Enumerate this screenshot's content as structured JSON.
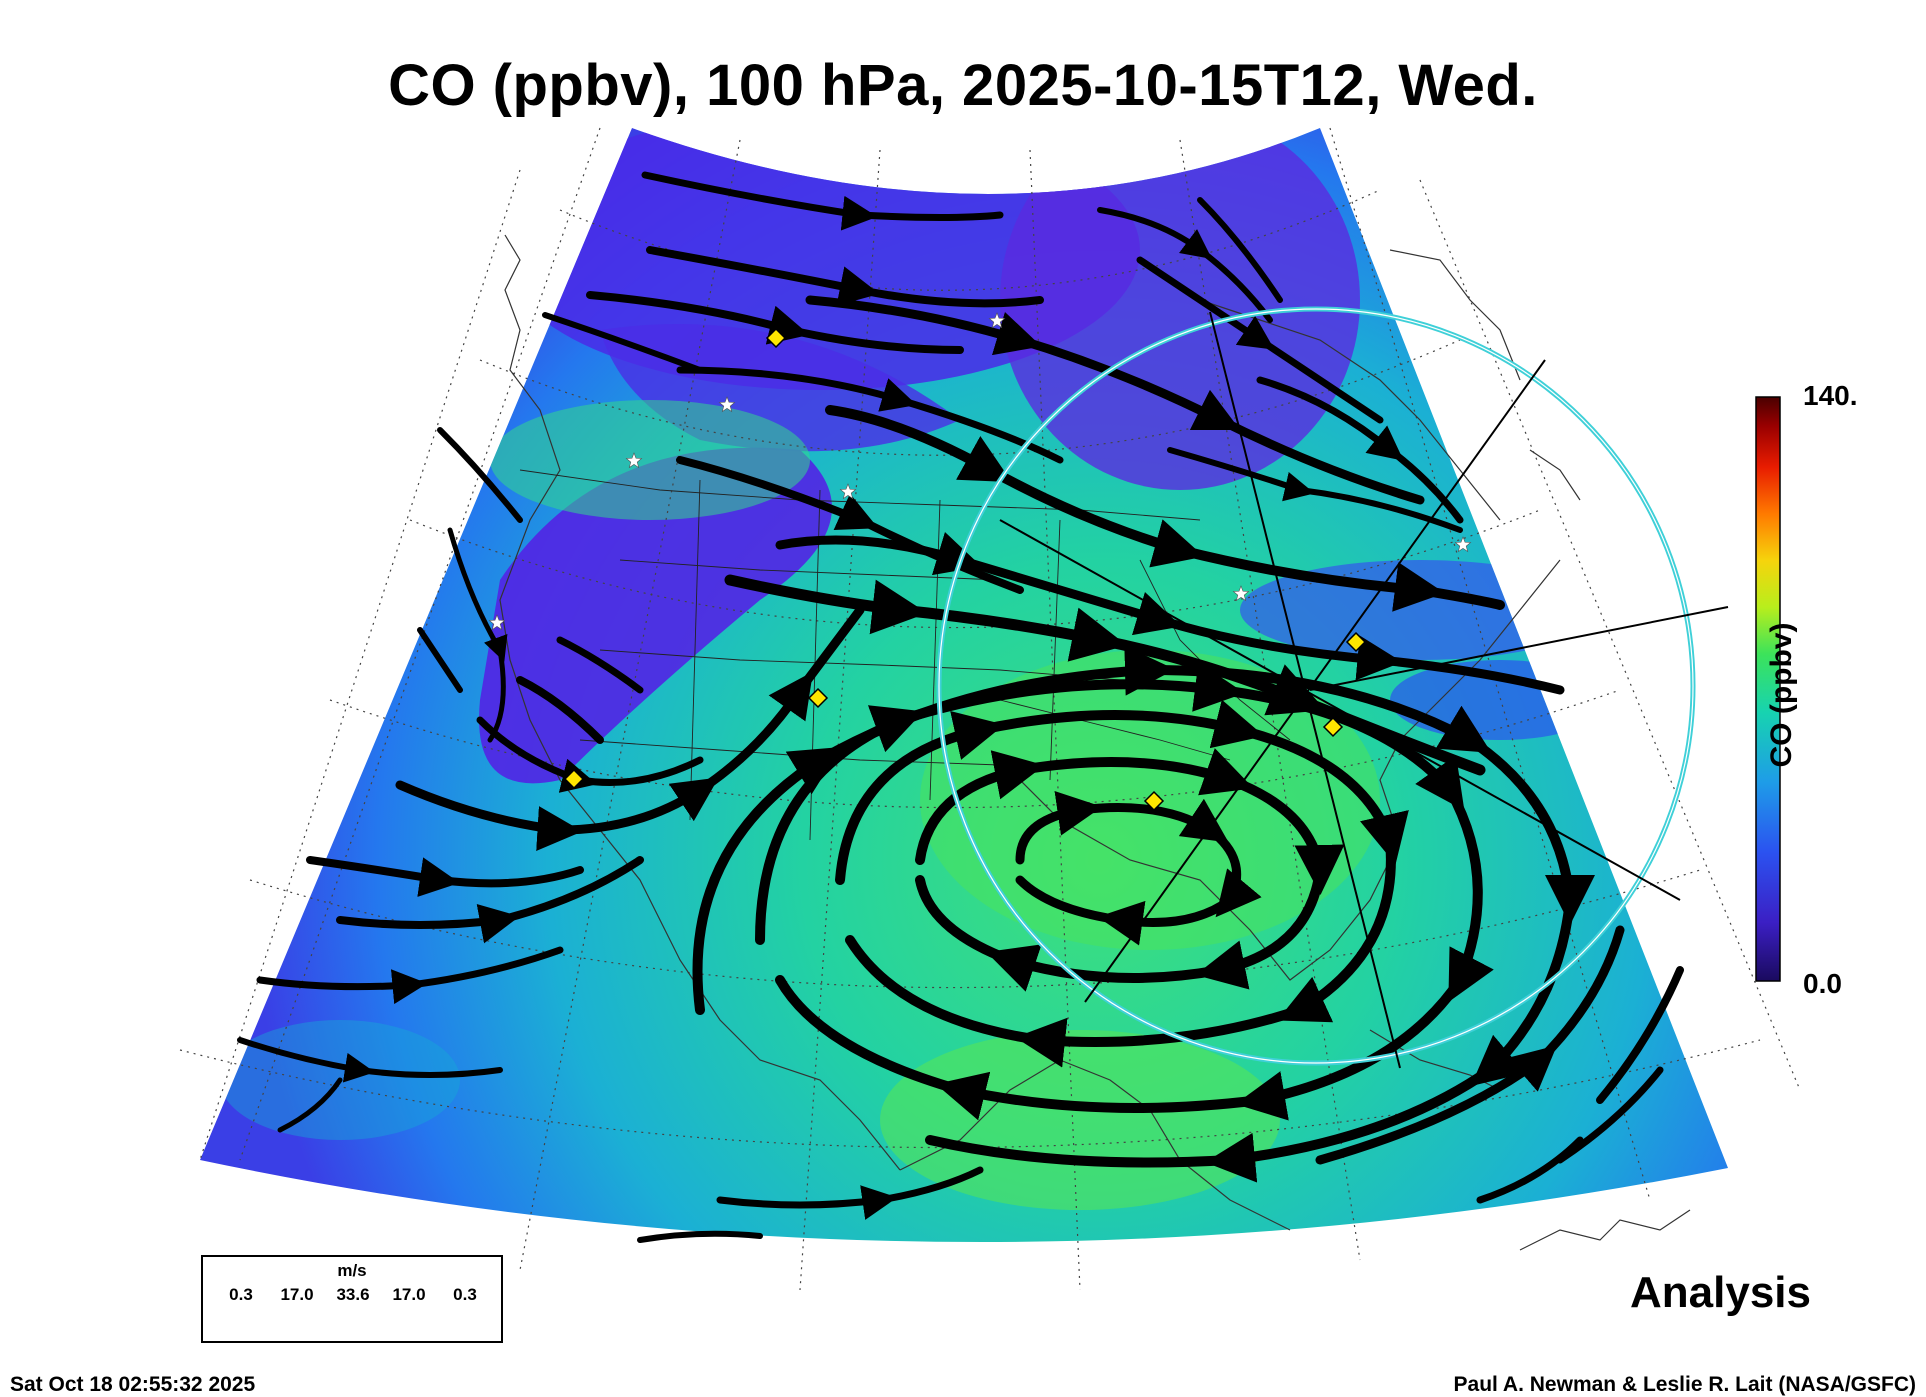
{
  "title": "CO (ppbv), 100 hPa, 2025-10-15T12, Wed.",
  "colorbar": {
    "max_label": "140.",
    "min_label": "0.0",
    "label": "CO (ppbv)",
    "colors": [
      "#1a0a5e",
      "#3b1fc4",
      "#2b52f0",
      "#1e9ce8",
      "#17d3b0",
      "#3ce35a",
      "#b8ee1c",
      "#f6d40c",
      "#ff7a00",
      "#e81c00",
      "#9a0000",
      "#4a0000"
    ]
  },
  "analysis_label": "Analysis",
  "legend": {
    "unit": "m/s",
    "values": [
      "0.3",
      "17.0",
      "33.6",
      "17.0",
      "0.3"
    ]
  },
  "footer": {
    "timestamp": "Sat Oct 18 02:55:32 2025",
    "credit": "Paul A. Newman & Leslie R. Lait (NASA/GSFC)"
  },
  "markers": {
    "diamond_color": "#ffe600",
    "star_color": "#ffffff",
    "circle_color": "#3fd0d8"
  }
}
